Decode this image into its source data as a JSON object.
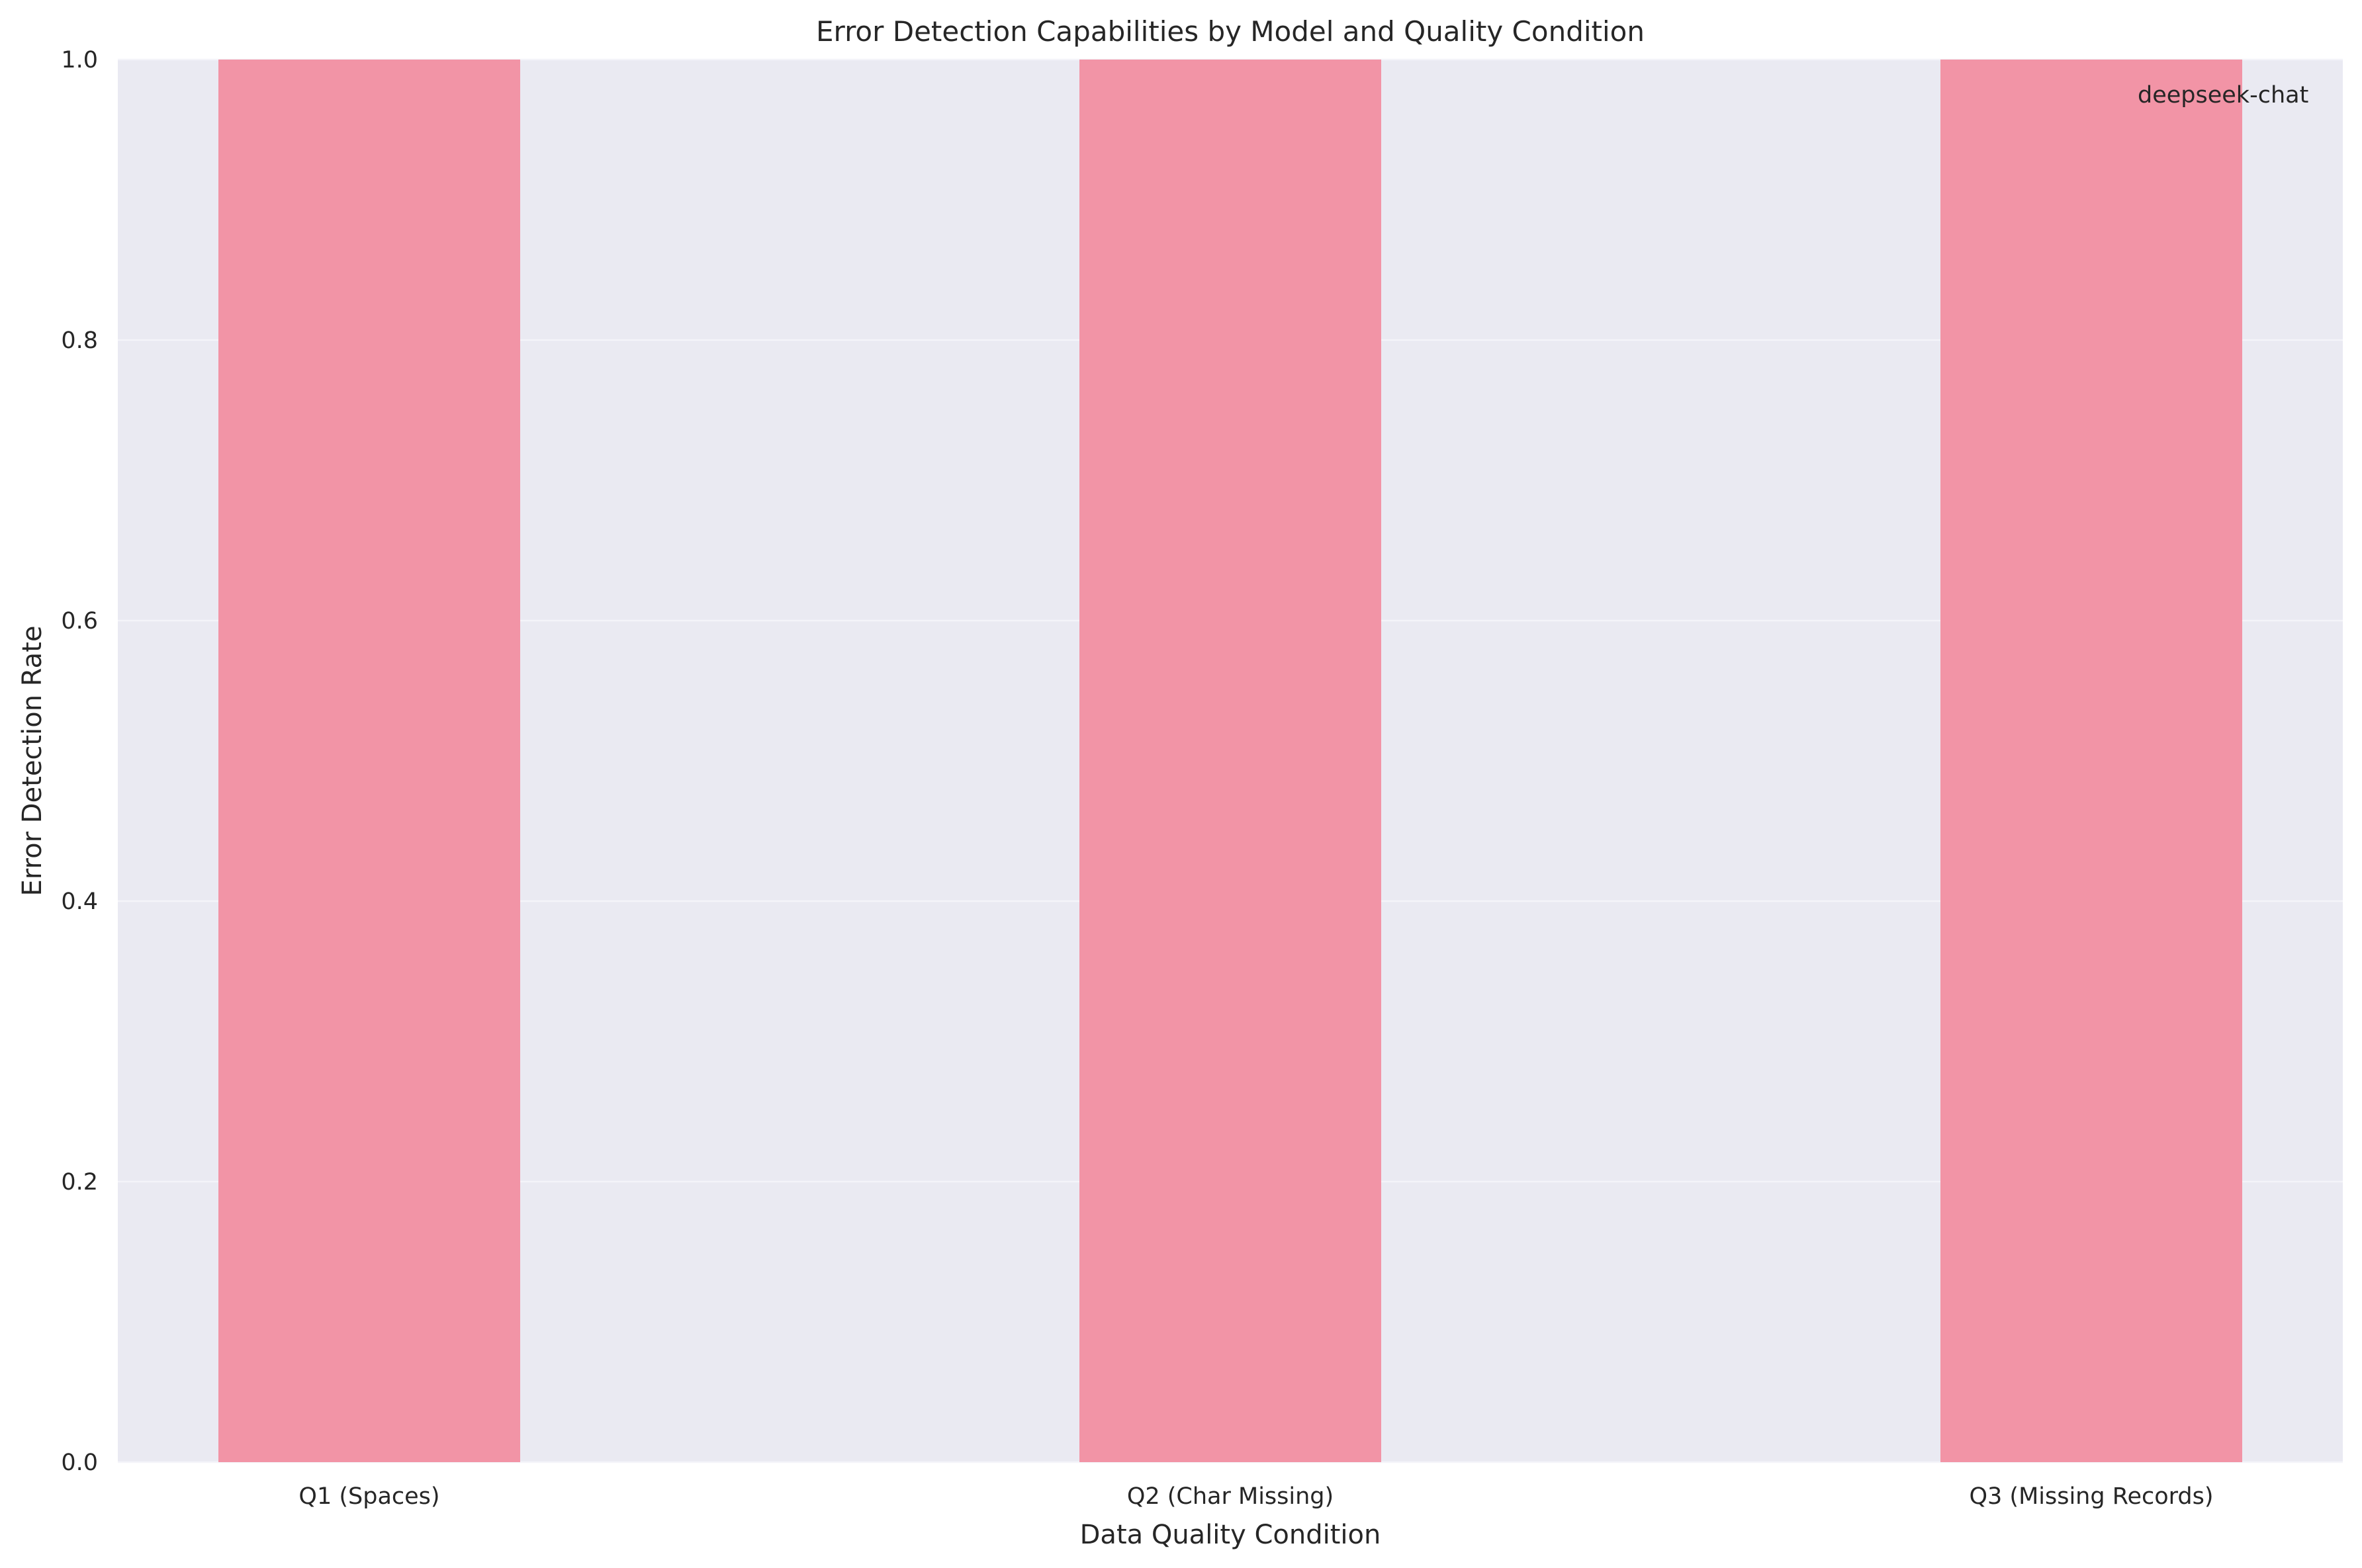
{
  "chart_data": {
    "type": "bar",
    "title": "Error Detection Capabilities by Model and Quality Condition",
    "xlabel": "Data Quality Condition",
    "ylabel": "Error Detection Rate",
    "categories": [
      "Q1 (Spaces)",
      "Q2 (Char Missing)",
      "Q3 (Missing Records)"
    ],
    "series": [
      {
        "name": "deepseek-chat",
        "color": "#f294a6",
        "values": [
          1.0,
          1.0,
          1.0
        ]
      }
    ],
    "ylim": [
      0,
      1.0
    ],
    "yticks": [
      0.0,
      0.2,
      0.4,
      0.6,
      0.8,
      1.0
    ],
    "ytick_labels": [
      "0.0",
      "0.2",
      "0.4",
      "0.6",
      "0.8",
      "1.0"
    ],
    "grid": "y",
    "legend_position": "top-right",
    "plot_background": "#eaeaf2",
    "grid_color": "#f4f4f9"
  }
}
